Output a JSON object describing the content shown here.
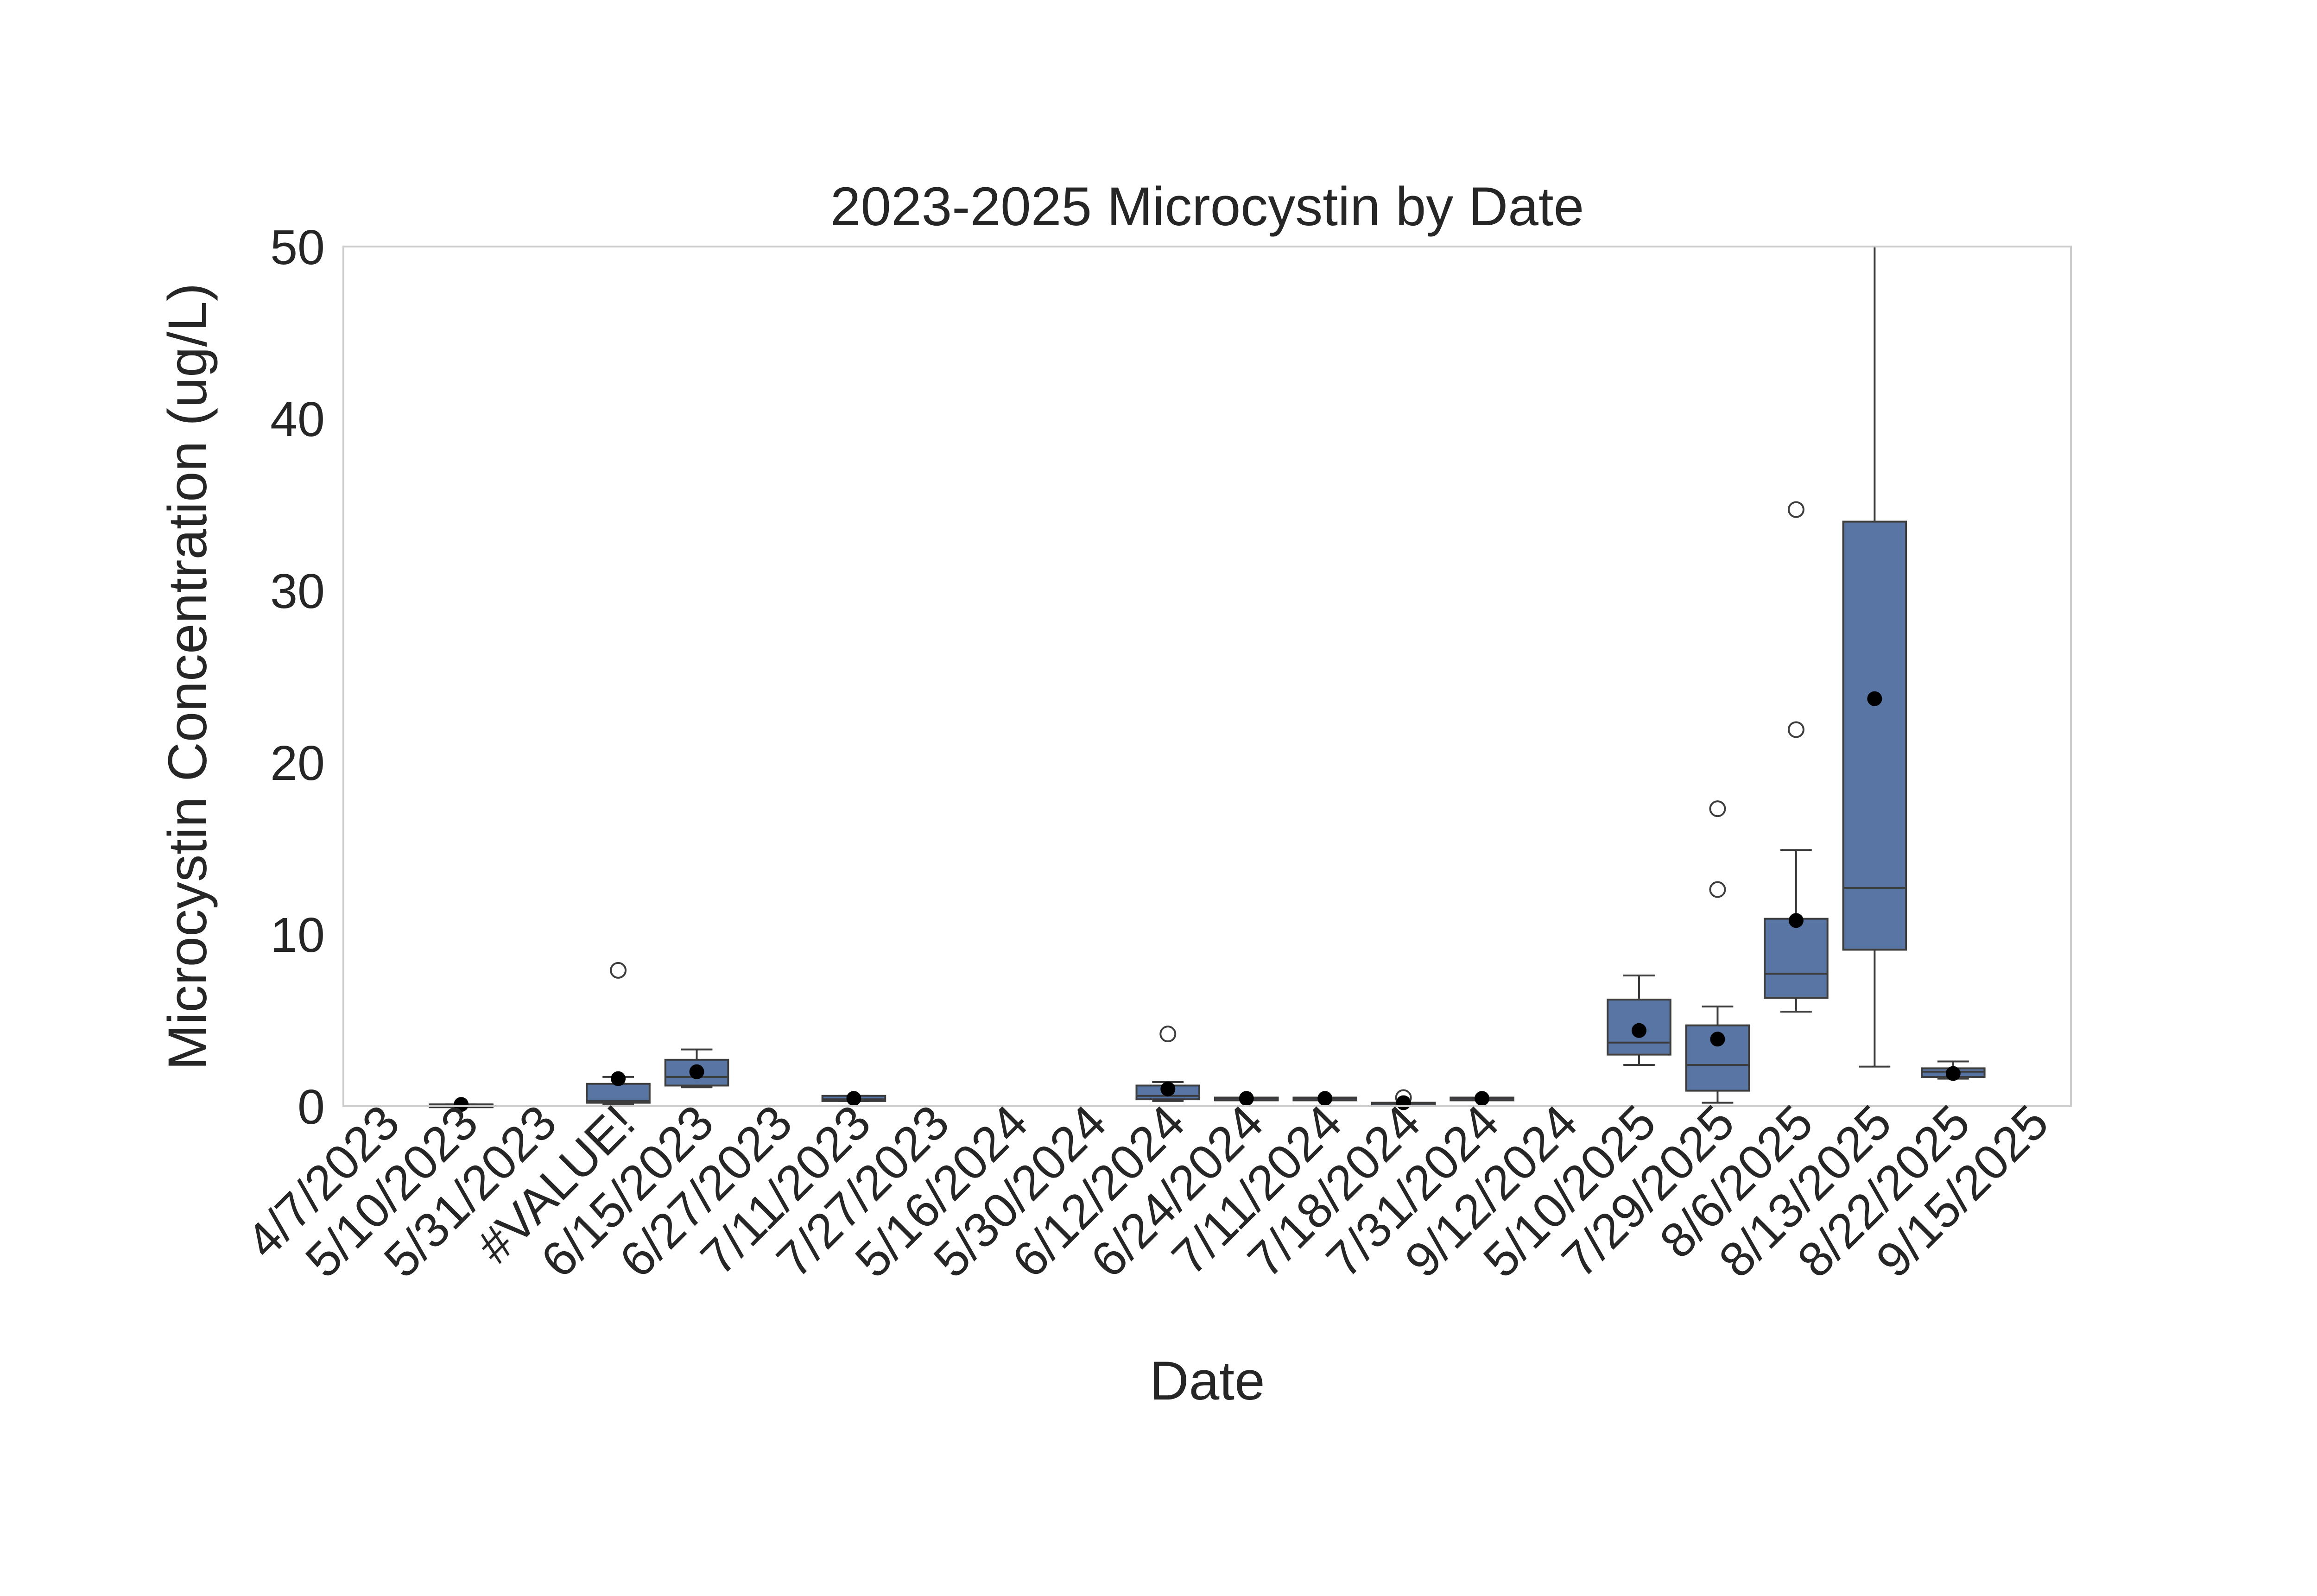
{
  "chart_data": {
    "type": "box",
    "title": "2023-2025 Microcystin by Date",
    "xlabel": "Date",
    "ylabel": "Microcystin Concentration (ug/L)",
    "ylim": [
      0,
      50
    ],
    "yticks": [
      0,
      10,
      20,
      30,
      40,
      50
    ],
    "grid": false,
    "legend": "none",
    "colors": {
      "box": "#5875a4",
      "line": "#3d3d3d",
      "mean": "#000000",
      "frame": "#cccccc"
    },
    "categories": [
      "4/7/2023",
      "5/10/2023",
      "5/31/2023",
      "#VALUE!",
      "6/15/2023",
      "6/27/2023",
      "7/11/2023",
      "7/27/2023",
      "5/16/2024",
      "5/30/2024",
      "6/12/2024",
      "6/24/2024",
      "7/11/2024",
      "7/18/2024",
      "7/31/2024",
      "9/12/2024",
      "5/10/2025",
      "7/29/2025",
      "8/6/2025",
      "8/13/2025",
      "8/22/2025",
      "9/15/2025"
    ],
    "boxes": [
      null,
      {
        "whislo": 0.1,
        "q1": 0.1,
        "med": 0.1,
        "q3": 0.1,
        "whishi": 0.1,
        "mean": 0.1,
        "fliers": []
      },
      null,
      {
        "whislo": 0.1,
        "q1": 0.2,
        "med": 0.3,
        "q3": 1.3,
        "whishi": 1.7,
        "mean": 1.6,
        "fliers": [
          7.9
        ]
      },
      {
        "whislo": 1.1,
        "q1": 1.2,
        "med": 1.7,
        "q3": 2.7,
        "whishi": 3.3,
        "mean": 2.0,
        "fliers": []
      },
      null,
      {
        "whislo": 0.3,
        "q1": 0.3,
        "med": 0.4,
        "q3": 0.6,
        "whishi": 0.6,
        "mean": 0.45,
        "fliers": []
      },
      null,
      null,
      null,
      {
        "whislo": 0.3,
        "q1": 0.4,
        "med": 0.6,
        "q3": 1.2,
        "whishi": 1.4,
        "mean": 1.0,
        "fliers": [
          4.2
        ]
      },
      {
        "whislo": 0.4,
        "q1": 0.4,
        "med": 0.45,
        "q3": 0.5,
        "whishi": 0.5,
        "mean": 0.45,
        "fliers": []
      },
      {
        "whislo": 0.4,
        "q1": 0.4,
        "med": 0.45,
        "q3": 0.5,
        "whishi": 0.5,
        "mean": 0.45,
        "fliers": []
      },
      {
        "whislo": 0.1,
        "q1": 0.1,
        "med": 0.15,
        "q3": 0.2,
        "whishi": 0.2,
        "mean": 0.2,
        "fliers": [
          0.5
        ]
      },
      {
        "whislo": 0.4,
        "q1": 0.4,
        "med": 0.45,
        "q3": 0.5,
        "whishi": 0.5,
        "mean": 0.45,
        "fliers": []
      },
      null,
      {
        "whislo": 2.4,
        "q1": 3.0,
        "med": 3.7,
        "q3": 6.2,
        "whishi": 7.6,
        "mean": 4.4,
        "fliers": []
      },
      {
        "whislo": 0.2,
        "q1": 0.9,
        "med": 2.4,
        "q3": 4.7,
        "whishi": 5.8,
        "mean": 3.9,
        "fliers": [
          12.6,
          17.3
        ]
      },
      {
        "whislo": 5.5,
        "q1": 6.3,
        "med": 7.7,
        "q3": 10.9,
        "whishi": 14.9,
        "mean": 10.8,
        "fliers": [
          21.9,
          34.7
        ]
      },
      {
        "whislo": 2.3,
        "q1": 9.1,
        "med": 12.7,
        "q3": 34.0,
        "whishi": 50.0,
        "mean": 23.7,
        "fliers": []
      },
      {
        "whislo": 1.6,
        "q1": 1.7,
        "med": 2.0,
        "q3": 2.2,
        "whishi": 2.6,
        "mean": 1.9,
        "fliers": []
      },
      null
    ]
  }
}
